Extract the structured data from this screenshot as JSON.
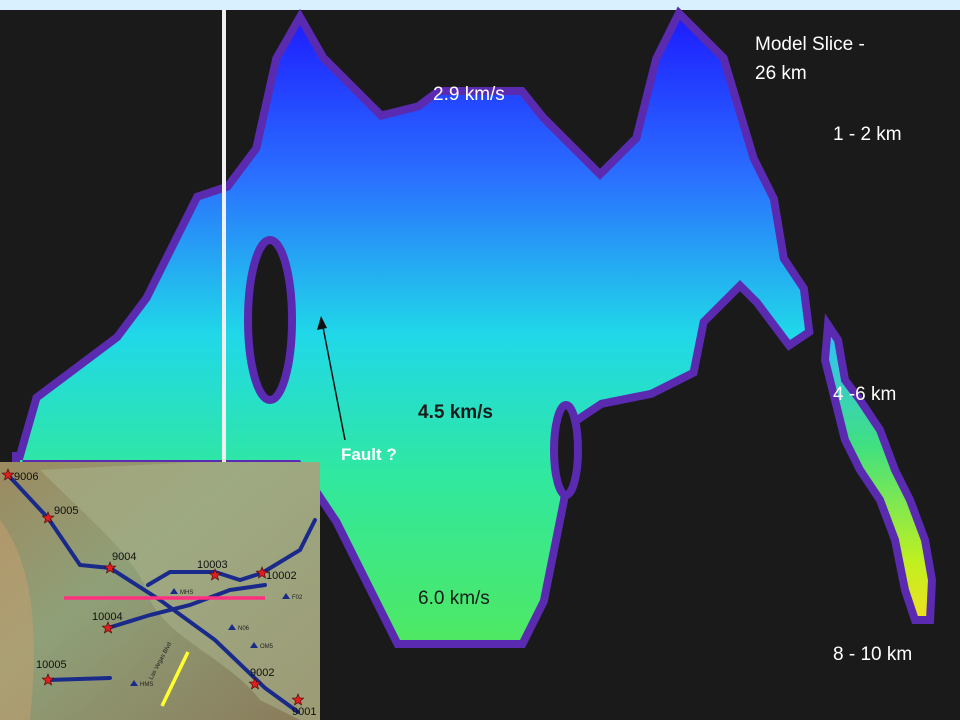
{
  "slide": {
    "title_lines": [
      "Model Slice -",
      "26 km"
    ],
    "velocity_labels": [
      "2.9 km/s",
      "4.5 km/s",
      "6.0 km/s"
    ],
    "fault_label": "Fault ?",
    "depth_labels": [
      "1 - 2 km",
      "4 -6 km",
      "8 - 10 km"
    ]
  },
  "map": {
    "stations": [
      "9006",
      "9005",
      "9004",
      "10003",
      "10002",
      "10004",
      "9002",
      "10005",
      "9001"
    ],
    "sites": [
      "MHS",
      "F02",
      "N06",
      "OM5",
      "HMS"
    ],
    "road_label": "Las Vegas Blvd"
  }
}
